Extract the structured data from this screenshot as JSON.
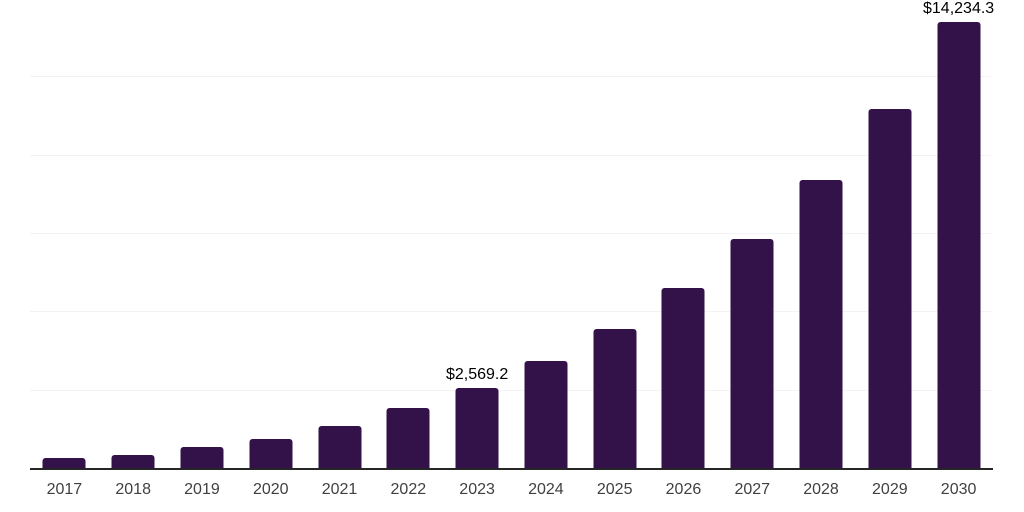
{
  "page": {
    "background_color": "#ffffff"
  },
  "chart_data": {
    "type": "bar",
    "title": "",
    "xlabel": "",
    "ylabel": "",
    "categories": [
      "2017",
      "2018",
      "2019",
      "2020",
      "2021",
      "2022",
      "2023",
      "2024",
      "2025",
      "2026",
      "2027",
      "2028",
      "2029",
      "2030"
    ],
    "values": [
      320,
      430,
      670,
      925,
      1340,
      1910,
      2569.2,
      3420,
      4440,
      5740,
      7310,
      9190,
      11460,
      14234.3
    ],
    "value_labels": [
      "",
      "",
      "",
      "",
      "",
      "",
      "$2,569.2",
      "",
      "",
      "",
      "",
      "",
      "",
      "$14,234.3"
    ],
    "ylim": [
      0,
      15000
    ],
    "grid": true,
    "gridline_values": [
      2500,
      5000,
      7500,
      10000,
      12500,
      15000
    ],
    "legend": "none",
    "colors": {
      "bar": "#33124A",
      "axis_line": "#262626",
      "gridline": "#f3f3f3",
      "tick_label": "#404040",
      "value_label": "#000000"
    }
  }
}
